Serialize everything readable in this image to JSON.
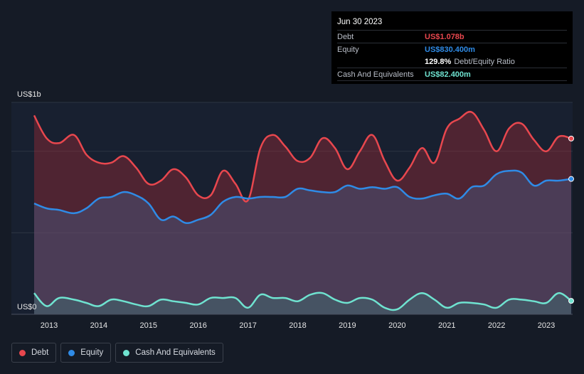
{
  "chart_data": {
    "type": "area",
    "y_unit_label": "US$1b",
    "y_zero_label": "US$0",
    "ylim": [
      0,
      1.3
    ],
    "xlim": [
      2012.7,
      2023.5
    ],
    "x_ticks": [
      "2013",
      "2014",
      "2015",
      "2016",
      "2017",
      "2018",
      "2019",
      "2020",
      "2021",
      "2022",
      "2023"
    ],
    "x_tick_values": [
      2013,
      2014,
      2015,
      2016,
      2017,
      2018,
      2019,
      2020,
      2021,
      2022,
      2023
    ],
    "grid_y": [
      0.5,
      1.0
    ],
    "series": [
      {
        "name": "Debt",
        "color": "#e8474e",
        "x": [
          2012.7,
          2012.95,
          2013.2,
          2013.5,
          2013.75,
          2014.0,
          2014.25,
          2014.5,
          2014.75,
          2015.0,
          2015.25,
          2015.5,
          2015.75,
          2016.0,
          2016.25,
          2016.5,
          2016.75,
          2017.0,
          2017.25,
          2017.5,
          2017.75,
          2018.0,
          2018.25,
          2018.5,
          2018.75,
          2019.0,
          2019.25,
          2019.5,
          2019.75,
          2020.0,
          2020.25,
          2020.5,
          2020.75,
          2021.0,
          2021.25,
          2021.5,
          2021.75,
          2022.0,
          2022.25,
          2022.5,
          2022.75,
          2023.0,
          2023.25,
          2023.5
        ],
        "values": [
          1.22,
          1.08,
          1.05,
          1.1,
          0.98,
          0.93,
          0.93,
          0.97,
          0.9,
          0.8,
          0.82,
          0.89,
          0.84,
          0.73,
          0.73,
          0.88,
          0.8,
          0.7,
          1.02,
          1.1,
          1.03,
          0.94,
          0.96,
          1.08,
          1.02,
          0.89,
          1.0,
          1.1,
          0.94,
          0.82,
          0.9,
          1.02,
          0.93,
          1.14,
          1.2,
          1.24,
          1.13,
          1.0,
          1.14,
          1.17,
          1.07,
          1.0,
          1.09,
          1.078
        ]
      },
      {
        "name": "Equity",
        "color": "#2f8be6",
        "x": [
          2012.7,
          2012.95,
          2013.2,
          2013.5,
          2013.75,
          2014.0,
          2014.25,
          2014.5,
          2014.75,
          2015.0,
          2015.25,
          2015.5,
          2015.75,
          2016.0,
          2016.25,
          2016.5,
          2016.75,
          2017.0,
          2017.25,
          2017.5,
          2017.75,
          2018.0,
          2018.25,
          2018.5,
          2018.75,
          2019.0,
          2019.25,
          2019.5,
          2019.75,
          2020.0,
          2020.25,
          2020.5,
          2020.75,
          2021.0,
          2021.25,
          2021.5,
          2021.75,
          2022.0,
          2022.25,
          2022.5,
          2022.75,
          2023.0,
          2023.25,
          2023.5
        ],
        "values": [
          0.68,
          0.65,
          0.64,
          0.62,
          0.65,
          0.71,
          0.72,
          0.75,
          0.73,
          0.68,
          0.58,
          0.6,
          0.56,
          0.58,
          0.61,
          0.69,
          0.72,
          0.71,
          0.72,
          0.72,
          0.72,
          0.77,
          0.76,
          0.75,
          0.75,
          0.79,
          0.77,
          0.78,
          0.77,
          0.78,
          0.72,
          0.71,
          0.73,
          0.74,
          0.71,
          0.78,
          0.79,
          0.86,
          0.88,
          0.87,
          0.79,
          0.82,
          0.82,
          0.8304
        ]
      },
      {
        "name": "Cash And Equivalents",
        "color": "#6fe3d0",
        "x": [
          2012.7,
          2012.95,
          2013.2,
          2013.5,
          2013.75,
          2014.0,
          2014.25,
          2014.5,
          2014.75,
          2015.0,
          2015.25,
          2015.5,
          2015.75,
          2016.0,
          2016.25,
          2016.5,
          2016.75,
          2017.0,
          2017.25,
          2017.5,
          2017.75,
          2018.0,
          2018.25,
          2018.5,
          2018.75,
          2019.0,
          2019.25,
          2019.5,
          2019.75,
          2020.0,
          2020.25,
          2020.5,
          2020.75,
          2021.0,
          2021.25,
          2021.5,
          2021.75,
          2022.0,
          2022.25,
          2022.5,
          2022.75,
          2023.0,
          2023.25,
          2023.5
        ],
        "values": [
          0.13,
          0.05,
          0.1,
          0.09,
          0.07,
          0.05,
          0.09,
          0.08,
          0.06,
          0.05,
          0.09,
          0.08,
          0.07,
          0.06,
          0.1,
          0.1,
          0.1,
          0.04,
          0.12,
          0.1,
          0.1,
          0.08,
          0.12,
          0.13,
          0.09,
          0.07,
          0.1,
          0.09,
          0.04,
          0.03,
          0.09,
          0.13,
          0.09,
          0.04,
          0.07,
          0.07,
          0.06,
          0.04,
          0.09,
          0.09,
          0.08,
          0.07,
          0.13,
          0.0824
        ]
      }
    ]
  },
  "tooltip": {
    "date": "Jun 30 2023",
    "rows": [
      {
        "label": "Debt",
        "value": "US$1.078b",
        "color": "#e8474e"
      },
      {
        "label": "Equity",
        "value": "US$830.400m",
        "color": "#2f8be6"
      },
      {
        "label": "",
        "value": "129.8%",
        "suffix": "Debt/Equity Ratio",
        "color": "#ffffff"
      },
      {
        "label": "Cash And Equivalents",
        "value": "US$82.400m",
        "color": "#6fe3d0"
      }
    ]
  },
  "legend": [
    {
      "label": "Debt",
      "color": "#e8474e"
    },
    {
      "label": "Equity",
      "color": "#2f8be6"
    },
    {
      "label": "Cash And Equivalents",
      "color": "#6fe3d0"
    }
  ]
}
